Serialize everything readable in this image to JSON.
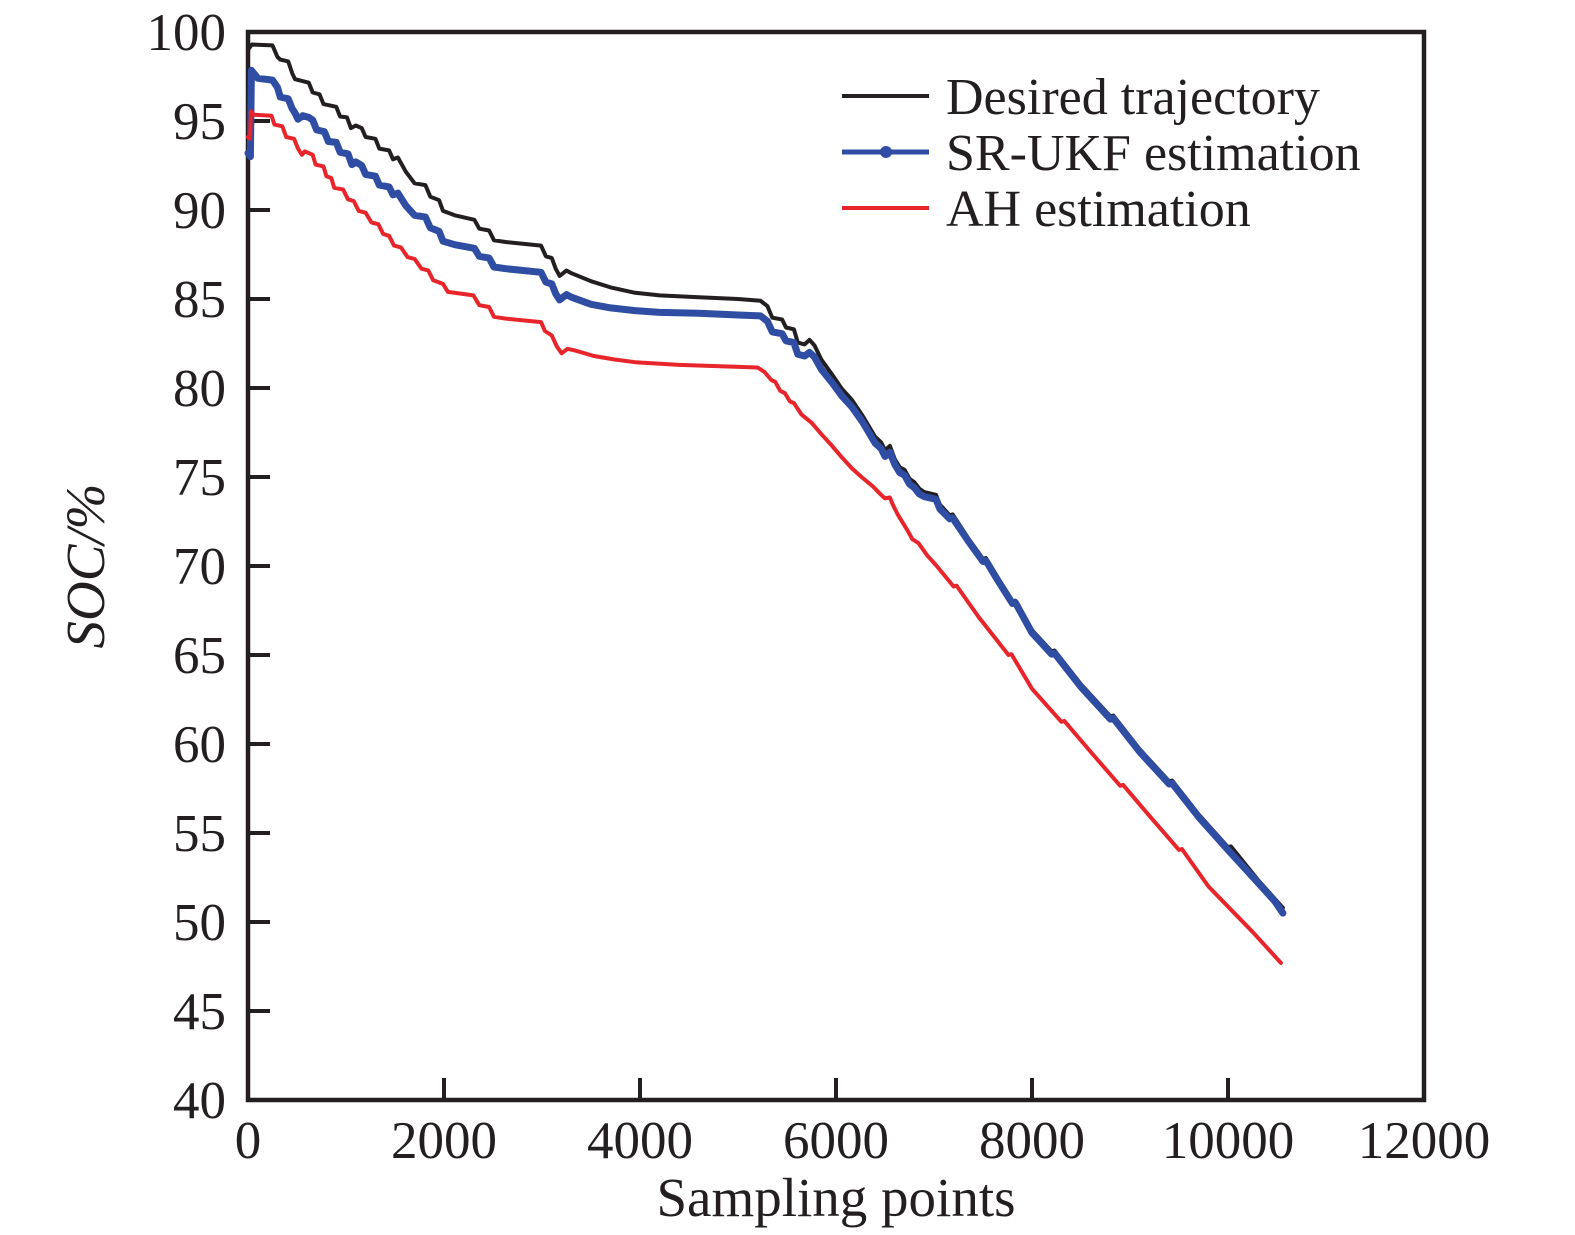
{
  "chart_data": {
    "type": "line",
    "title": "",
    "xlabel": "Sampling points",
    "ylabel": "SOC/%",
    "xlim": [
      0,
      12000
    ],
    "ylim": [
      40,
      100
    ],
    "x_ticks": [
      0,
      2000,
      4000,
      6000,
      8000,
      10000,
      12000
    ],
    "y_ticks": [
      40,
      45,
      50,
      55,
      60,
      65,
      70,
      75,
      80,
      85,
      90,
      95,
      100
    ],
    "grid": false,
    "legend_position": "top-right-inside",
    "frame_color": "#231f20",
    "background_color": "#ffffff",
    "series": [
      {
        "name": "Desired trajectory",
        "color": "#231f20",
        "line_width": 4,
        "marker": "none",
        "points": [
          [
            0,
            99.0
          ],
          [
            40,
            99.3
          ],
          [
            250,
            99.25
          ],
          [
            300,
            98.6
          ],
          [
            330,
            98.45
          ],
          [
            410,
            98.35
          ],
          [
            450,
            97.7
          ],
          [
            480,
            97.35
          ],
          [
            620,
            97.15
          ],
          [
            660,
            96.6
          ],
          [
            730,
            96.5
          ],
          [
            770,
            95.95
          ],
          [
            900,
            95.8
          ],
          [
            940,
            95.25
          ],
          [
            1010,
            95.2
          ],
          [
            1050,
            94.6
          ],
          [
            1100,
            94.75
          ],
          [
            1160,
            94.6
          ],
          [
            1200,
            94.1
          ],
          [
            1300,
            94.0
          ],
          [
            1340,
            93.45
          ],
          [
            1440,
            93.35
          ],
          [
            1480,
            92.85
          ],
          [
            1530,
            92.95
          ],
          [
            1610,
            92.15
          ],
          [
            1700,
            91.5
          ],
          [
            1810,
            91.4
          ],
          [
            1860,
            90.75
          ],
          [
            1950,
            90.55
          ],
          [
            1990,
            89.95
          ],
          [
            2110,
            89.7
          ],
          [
            2310,
            89.45
          ],
          [
            2360,
            88.95
          ],
          [
            2460,
            88.85
          ],
          [
            2510,
            88.3
          ],
          [
            2630,
            88.2
          ],
          [
            2990,
            88.0
          ],
          [
            3040,
            87.4
          ],
          [
            3100,
            87.3
          ],
          [
            3140,
            86.7
          ],
          [
            3180,
            86.3
          ],
          [
            3250,
            86.6
          ],
          [
            3300,
            86.45
          ],
          [
            3500,
            86.0
          ],
          [
            3700,
            85.65
          ],
          [
            3950,
            85.35
          ],
          [
            4200,
            85.2
          ],
          [
            4600,
            85.1
          ],
          [
            5000,
            85.0
          ],
          [
            5230,
            84.9
          ],
          [
            5300,
            84.6
          ],
          [
            5350,
            83.95
          ],
          [
            5450,
            83.85
          ],
          [
            5490,
            83.4
          ],
          [
            5570,
            83.3
          ],
          [
            5610,
            82.55
          ],
          [
            5680,
            82.45
          ],
          [
            5730,
            82.7
          ],
          [
            5780,
            82.4
          ],
          [
            5850,
            81.6
          ],
          [
            5960,
            80.75
          ],
          [
            6060,
            79.95
          ],
          [
            6160,
            79.35
          ],
          [
            6270,
            78.45
          ],
          [
            6330,
            77.9
          ],
          [
            6400,
            77.25
          ],
          [
            6460,
            76.95
          ],
          [
            6500,
            76.5
          ],
          [
            6550,
            76.75
          ],
          [
            6600,
            76.0
          ],
          [
            6650,
            75.55
          ],
          [
            6700,
            75.4
          ],
          [
            6750,
            74.9
          ],
          [
            6800,
            74.7
          ],
          [
            6850,
            74.35
          ],
          [
            6900,
            74.15
          ],
          [
            7020,
            74.0
          ],
          [
            7060,
            73.45
          ],
          [
            7160,
            72.85
          ],
          [
            7190,
            72.9
          ],
          [
            7350,
            71.55
          ],
          [
            7500,
            70.4
          ],
          [
            7530,
            70.45
          ],
          [
            7650,
            69.35
          ],
          [
            7800,
            68.0
          ],
          [
            7830,
            68.05
          ],
          [
            8000,
            66.4
          ],
          [
            8200,
            65.2
          ],
          [
            8230,
            65.25
          ],
          [
            8500,
            63.35
          ],
          [
            8800,
            61.55
          ],
          [
            8830,
            61.6
          ],
          [
            9100,
            59.7
          ],
          [
            9400,
            57.9
          ],
          [
            9430,
            57.95
          ],
          [
            9700,
            56.05
          ],
          [
            10000,
            54.2
          ],
          [
            10030,
            54.25
          ],
          [
            10300,
            52.4
          ],
          [
            10560,
            50.8
          ]
        ]
      },
      {
        "name": "SR-UKF estimation",
        "color": "#2e4da3",
        "line_width": 7,
        "marker": "dot",
        "points": [
          [
            0,
            93.2
          ],
          [
            25,
            93.0
          ],
          [
            30,
            95.5
          ],
          [
            35,
            97.85
          ],
          [
            100,
            97.4
          ],
          [
            250,
            97.3
          ],
          [
            300,
            96.9
          ],
          [
            330,
            96.35
          ],
          [
            410,
            96.25
          ],
          [
            450,
            95.7
          ],
          [
            480,
            95.45
          ],
          [
            510,
            95.1
          ],
          [
            560,
            95.3
          ],
          [
            620,
            95.2
          ],
          [
            660,
            95.05
          ],
          [
            700,
            94.5
          ],
          [
            780,
            94.4
          ],
          [
            820,
            93.85
          ],
          [
            900,
            93.8
          ],
          [
            940,
            93.25
          ],
          [
            1020,
            93.15
          ],
          [
            1060,
            92.55
          ],
          [
            1100,
            92.7
          ],
          [
            1160,
            92.5
          ],
          [
            1200,
            92.0
          ],
          [
            1300,
            91.9
          ],
          [
            1340,
            91.4
          ],
          [
            1440,
            91.3
          ],
          [
            1480,
            90.85
          ],
          [
            1530,
            90.95
          ],
          [
            1610,
            90.25
          ],
          [
            1700,
            89.7
          ],
          [
            1810,
            89.6
          ],
          [
            1860,
            89.0
          ],
          [
            1950,
            88.8
          ],
          [
            1990,
            88.25
          ],
          [
            2110,
            88.05
          ],
          [
            2310,
            87.85
          ],
          [
            2360,
            87.4
          ],
          [
            2460,
            87.3
          ],
          [
            2510,
            86.8
          ],
          [
            2630,
            86.7
          ],
          [
            2990,
            86.5
          ],
          [
            3040,
            85.95
          ],
          [
            3100,
            85.85
          ],
          [
            3140,
            85.3
          ],
          [
            3180,
            84.95
          ],
          [
            3250,
            85.25
          ],
          [
            3300,
            85.1
          ],
          [
            3500,
            84.7
          ],
          [
            3700,
            84.5
          ],
          [
            3950,
            84.35
          ],
          [
            4200,
            84.25
          ],
          [
            4600,
            84.2
          ],
          [
            5000,
            84.1
          ],
          [
            5230,
            84.05
          ],
          [
            5300,
            83.75
          ],
          [
            5350,
            83.15
          ],
          [
            5450,
            83.05
          ],
          [
            5490,
            82.65
          ],
          [
            5570,
            82.55
          ],
          [
            5610,
            81.9
          ],
          [
            5680,
            81.8
          ],
          [
            5730,
            82.0
          ],
          [
            5780,
            81.75
          ],
          [
            5850,
            81.05
          ],
          [
            5960,
            80.3
          ],
          [
            6060,
            79.55
          ],
          [
            6160,
            78.95
          ],
          [
            6270,
            78.1
          ],
          [
            6330,
            77.55
          ],
          [
            6400,
            76.9
          ],
          [
            6460,
            76.6
          ],
          [
            6500,
            76.15
          ],
          [
            6550,
            76.4
          ],
          [
            6600,
            75.7
          ],
          [
            6650,
            75.25
          ],
          [
            6700,
            75.1
          ],
          [
            6750,
            74.6
          ],
          [
            6800,
            74.4
          ],
          [
            6850,
            74.05
          ],
          [
            6900,
            73.9
          ],
          [
            7020,
            73.75
          ],
          [
            7060,
            73.2
          ],
          [
            7160,
            72.65
          ],
          [
            7190,
            72.7
          ],
          [
            7350,
            71.4
          ],
          [
            7500,
            70.25
          ],
          [
            7530,
            70.3
          ],
          [
            7650,
            69.2
          ],
          [
            7800,
            67.9
          ],
          [
            7830,
            67.95
          ],
          [
            8000,
            66.25
          ],
          [
            8200,
            65.05
          ],
          [
            8230,
            65.1
          ],
          [
            8500,
            63.2
          ],
          [
            8800,
            61.4
          ],
          [
            8830,
            61.45
          ],
          [
            9100,
            59.55
          ],
          [
            9400,
            57.75
          ],
          [
            9430,
            57.8
          ],
          [
            9700,
            55.9
          ],
          [
            10000,
            54.05
          ],
          [
            10300,
            52.25
          ],
          [
            10480,
            51.15
          ],
          [
            10560,
            50.5
          ]
        ]
      },
      {
        "name": "AH estimation",
        "color": "#e8252b",
        "line_width": 4,
        "marker": "none",
        "points": [
          [
            0,
            94.1
          ],
          [
            20,
            94.0
          ],
          [
            30,
            95.55
          ],
          [
            60,
            95.35
          ],
          [
            240,
            95.3
          ],
          [
            270,
            94.8
          ],
          [
            350,
            94.7
          ],
          [
            390,
            94.1
          ],
          [
            470,
            94.0
          ],
          [
            510,
            93.45
          ],
          [
            550,
            93.1
          ],
          [
            580,
            93.3
          ],
          [
            660,
            93.1
          ],
          [
            690,
            92.55
          ],
          [
            770,
            92.45
          ],
          [
            800,
            91.9
          ],
          [
            850,
            91.8
          ],
          [
            880,
            91.25
          ],
          [
            970,
            91.15
          ],
          [
            1020,
            90.6
          ],
          [
            1080,
            90.5
          ],
          [
            1130,
            89.95
          ],
          [
            1200,
            89.85
          ],
          [
            1260,
            89.3
          ],
          [
            1330,
            89.2
          ],
          [
            1380,
            88.65
          ],
          [
            1440,
            88.55
          ],
          [
            1490,
            88.0
          ],
          [
            1560,
            87.9
          ],
          [
            1630,
            87.35
          ],
          [
            1700,
            87.25
          ],
          [
            1770,
            86.7
          ],
          [
            1840,
            86.6
          ],
          [
            1890,
            86.05
          ],
          [
            1990,
            85.85
          ],
          [
            2040,
            85.4
          ],
          [
            2300,
            85.2
          ],
          [
            2360,
            84.65
          ],
          [
            2460,
            84.55
          ],
          [
            2510,
            84.0
          ],
          [
            2630,
            83.9
          ],
          [
            2990,
            83.7
          ],
          [
            3030,
            83.2
          ],
          [
            3100,
            82.95
          ],
          [
            3150,
            82.35
          ],
          [
            3200,
            81.95
          ],
          [
            3260,
            82.2
          ],
          [
            3340,
            82.1
          ],
          [
            3530,
            81.8
          ],
          [
            3740,
            81.6
          ],
          [
            3950,
            81.45
          ],
          [
            4400,
            81.3
          ],
          [
            5200,
            81.15
          ],
          [
            5270,
            80.9
          ],
          [
            5340,
            80.45
          ],
          [
            5380,
            80.35
          ],
          [
            5430,
            79.85
          ],
          [
            5480,
            79.7
          ],
          [
            5530,
            79.25
          ],
          [
            5570,
            79.15
          ],
          [
            5650,
            78.5
          ],
          [
            5750,
            78.05
          ],
          [
            5860,
            77.35
          ],
          [
            5960,
            76.75
          ],
          [
            6060,
            76.1
          ],
          [
            6160,
            75.5
          ],
          [
            6260,
            75.0
          ],
          [
            6370,
            74.5
          ],
          [
            6460,
            74.0
          ],
          [
            6500,
            73.8
          ],
          [
            6550,
            73.85
          ],
          [
            6580,
            73.45
          ],
          [
            6630,
            72.9
          ],
          [
            6680,
            72.45
          ],
          [
            6730,
            72.0
          ],
          [
            6780,
            71.5
          ],
          [
            6840,
            71.3
          ],
          [
            6930,
            70.6
          ],
          [
            7020,
            70.05
          ],
          [
            7200,
            68.85
          ],
          [
            7230,
            68.9
          ],
          [
            7460,
            67.1
          ],
          [
            7760,
            65.0
          ],
          [
            7790,
            65.05
          ],
          [
            8000,
            63.1
          ],
          [
            8300,
            61.25
          ],
          [
            8330,
            61.3
          ],
          [
            8600,
            59.55
          ],
          [
            8900,
            57.65
          ],
          [
            8930,
            57.7
          ],
          [
            9200,
            55.95
          ],
          [
            9500,
            54.05
          ],
          [
            9530,
            54.1
          ],
          [
            9800,
            52.0
          ],
          [
            10100,
            50.3
          ],
          [
            10250,
            49.45
          ],
          [
            10540,
            47.7
          ]
        ]
      }
    ]
  }
}
